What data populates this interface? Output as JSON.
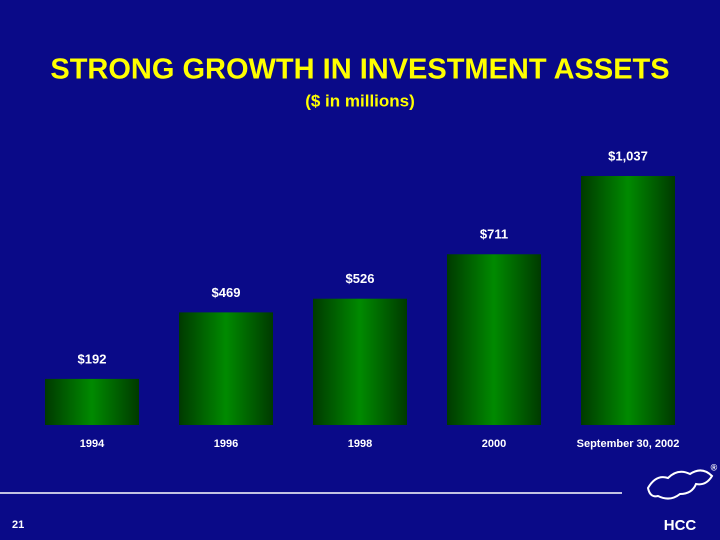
{
  "chart_data": {
    "type": "bar",
    "title": "STRONG GROWTH IN INVESTMENT ASSETS",
    "subtitle": "($ in millions)",
    "categories": [
      "1994",
      "1996",
      "1998",
      "2000",
      "September 30, 2002"
    ],
    "values": [
      192,
      469,
      526,
      711,
      1037
    ],
    "value_labels": [
      "$192",
      "$469",
      "$526",
      "$711",
      "$1,037"
    ],
    "color": "#007a00"
  },
  "slide_number": "21",
  "logo": {
    "text": "HCC",
    "mark": "®"
  }
}
